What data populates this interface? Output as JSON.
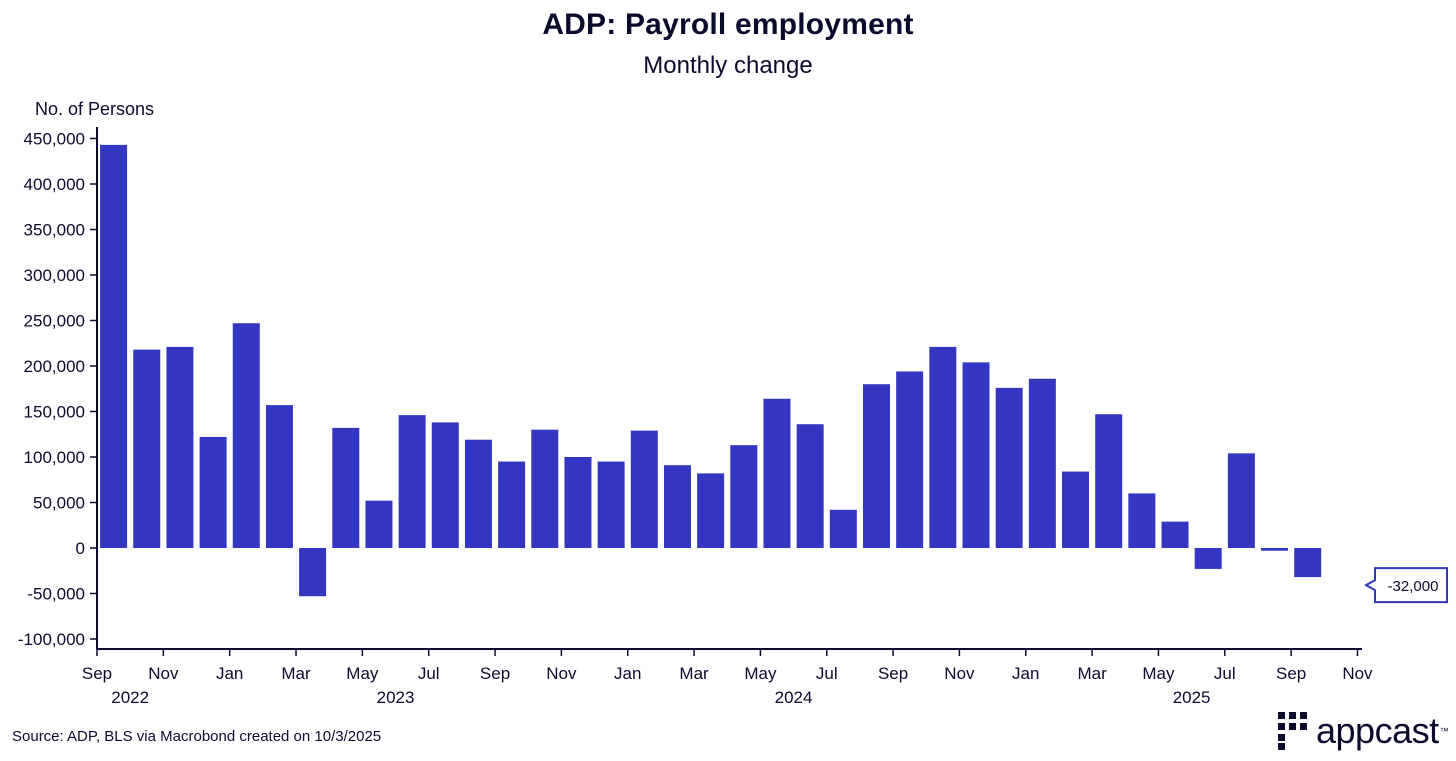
{
  "title": "ADP: Payroll employment",
  "subtitle": "Monthly change",
  "source": "Source: ADP, BLS via Macrobond created on 10/3/2025",
  "logo_text": "appcast",
  "logo_tm": "™",
  "colors": {
    "bar": "#3236c0",
    "axis": "#0b0b2e",
    "text": "#0b0b2e"
  },
  "chart_data": {
    "type": "bar",
    "ylabel": "No. of Persons",
    "ylim": [
      -110000,
      460000
    ],
    "yticks": [
      450000,
      400000,
      350000,
      300000,
      250000,
      200000,
      150000,
      100000,
      50000,
      0,
      -50000,
      -100000
    ],
    "ytick_labels": [
      "450,000",
      "400,000",
      "350,000",
      "300,000",
      "250,000",
      "200,000",
      "150,000",
      "100,000",
      "50,000",
      "0",
      "-50,000",
      "-100,000"
    ],
    "grid": false,
    "categories": [
      "Sep 2022",
      "Oct 2022",
      "Nov 2022",
      "Dec 2022",
      "Jan 2023",
      "Feb 2023",
      "Mar 2023",
      "Apr 2023",
      "May 2023",
      "Jun 2023",
      "Jul 2023",
      "Aug 2023",
      "Sep 2023",
      "Oct 2023",
      "Nov 2023",
      "Dec 2023",
      "Jan 2024",
      "Feb 2024",
      "Mar 2024",
      "Apr 2024",
      "May 2024",
      "Jun 2024",
      "Jul 2024",
      "Aug 2024",
      "Sep 2024",
      "Oct 2024",
      "Nov 2024",
      "Dec 2024",
      "Jan 2025",
      "Feb 2025",
      "Mar 2025",
      "Apr 2025",
      "May 2025",
      "Jun 2025",
      "Jul 2025",
      "Aug 2025",
      "Sep 2025"
    ],
    "values": [
      443000,
      218000,
      221000,
      122000,
      247000,
      157000,
      -53000,
      132000,
      52000,
      146000,
      138000,
      119000,
      95000,
      130000,
      100000,
      95000,
      129000,
      91000,
      82000,
      113000,
      164000,
      136000,
      42000,
      180000,
      194000,
      221000,
      204000,
      176000,
      186000,
      84000,
      147000,
      60000,
      29000,
      -23000,
      104000,
      -3000,
      -32000
    ],
    "x_tick_labels": [
      "Sep",
      "Nov",
      "Jan",
      "Mar",
      "May",
      "Jul",
      "Sep",
      "Nov",
      "Jan",
      "Mar",
      "May",
      "Jul",
      "Sep",
      "Nov",
      "Jan",
      "Mar",
      "May",
      "Jul",
      "Sep",
      "Nov"
    ],
    "year_labels": [
      "2022",
      "2023",
      "2024",
      "2025"
    ],
    "annotation": {
      "text": "-32,000",
      "value": -32000
    }
  }
}
